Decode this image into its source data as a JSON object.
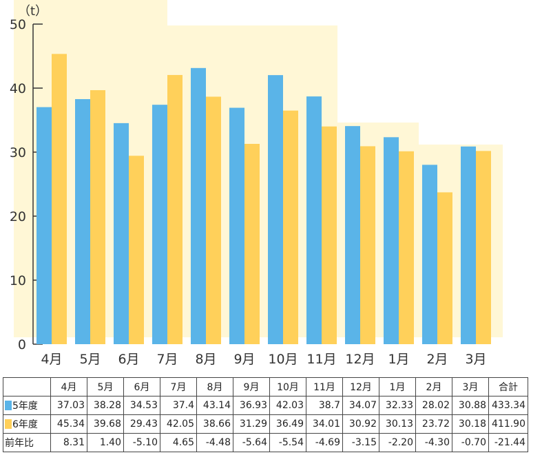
{
  "chart_data": {
    "type": "bar",
    "unit_label": "（t）",
    "ylim": [
      0,
      50
    ],
    "yticks": [
      0,
      10,
      20,
      30,
      40,
      50
    ],
    "categories": [
      "4月",
      "5月",
      "6月",
      "7月",
      "8月",
      "9月",
      "10月",
      "11月",
      "12月",
      "1月",
      "2月",
      "3月"
    ],
    "series": [
      {
        "name": "5年度",
        "color": "#5ab4e8",
        "values": [
          37.03,
          38.28,
          34.53,
          37.4,
          43.14,
          36.93,
          42.03,
          38.7,
          34.07,
          32.33,
          28.02,
          30.88
        ]
      },
      {
        "name": "6年度",
        "color": "#ffd05a",
        "values": [
          45.34,
          39.68,
          29.43,
          42.05,
          38.66,
          31.29,
          36.49,
          34.01,
          30.92,
          30.13,
          23.72,
          30.18
        ]
      }
    ],
    "legend": "table-left"
  },
  "table": {
    "headers": [
      "4月",
      "5月",
      "6月",
      "7月",
      "8月",
      "9月",
      "10月",
      "11月",
      "12月",
      "1月",
      "2月",
      "3月",
      "合計"
    ],
    "rows": [
      {
        "label": "5年度",
        "color": "#5ab4e8",
        "values": [
          "37.03",
          "38.28",
          "34.53",
          "37.4",
          "43.14",
          "36.93",
          "42.03",
          "38.7",
          "34.07",
          "32.33",
          "28.02",
          "30.88",
          "433.34"
        ]
      },
      {
        "label": "6年度",
        "color": "#ffd05a",
        "values": [
          "45.34",
          "39.68",
          "29.43",
          "42.05",
          "38.66",
          "31.29",
          "36.49",
          "34.01",
          "30.92",
          "30.13",
          "23.72",
          "30.18",
          "411.90"
        ]
      },
      {
        "label": "前年比",
        "color": null,
        "values": [
          "8.31",
          "1.40",
          "-5.10",
          "4.65",
          "-4.48",
          "-5.64",
          "-5.54",
          "-4.69",
          "-3.15",
          "-2.20",
          "-4.30",
          "-0.70",
          "-21.44"
        ]
      }
    ]
  }
}
